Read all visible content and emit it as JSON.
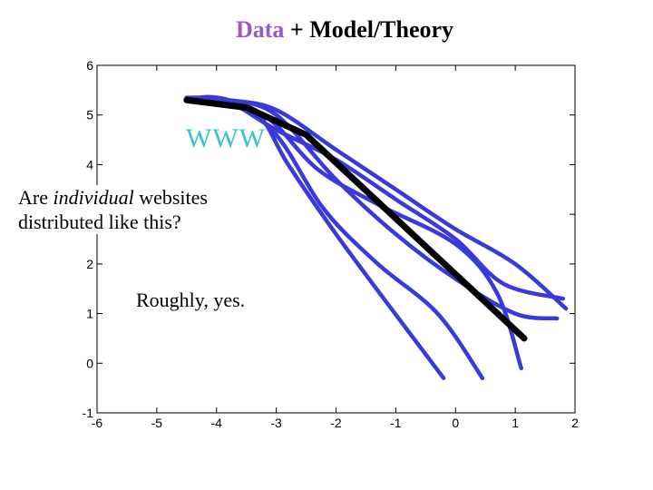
{
  "title": {
    "accent": "Data",
    "rest": " + Model/Theory"
  },
  "colors": {
    "accent": "#9b59c6",
    "data_curves": "#3a3adc",
    "model_line": "#000000",
    "www_label": "#3cc3c3"
  },
  "annotations": {
    "www": "WWW",
    "question_prefix": "Are ",
    "question_italic": "individual",
    "question_suffix": " websites",
    "question_line2": "distributed like this?",
    "answer": "Roughly, yes."
  },
  "chart_data": {
    "type": "line",
    "title": "Data + Model/Theory",
    "xlabel": "",
    "ylabel": "",
    "xlim": [
      -6,
      2
    ],
    "ylim": [
      -1,
      6
    ],
    "xticks": [
      -6,
      -5,
      -4,
      -3,
      -2,
      -1,
      0,
      1,
      2
    ],
    "yticks": [
      -1,
      0,
      1,
      2,
      3,
      4,
      5,
      6
    ],
    "ytick_labels_visible": [
      "-1",
      "0",
      "1",
      "2",
      "4",
      "5",
      "6"
    ],
    "grid": false,
    "series": [
      {
        "role": "data",
        "points": [
          [
            -4.5,
            5.3
          ],
          [
            -4.0,
            5.35
          ],
          [
            -3.3,
            5.0
          ],
          [
            -2.8,
            4.0
          ],
          [
            -2.0,
            2.6
          ],
          [
            -1.2,
            1.3
          ],
          [
            -0.2,
            -0.3
          ]
        ]
      },
      {
        "role": "data",
        "points": [
          [
            -4.5,
            5.3
          ],
          [
            -3.8,
            5.3
          ],
          [
            -3.0,
            4.6
          ],
          [
            -2.2,
            3.1
          ],
          [
            -1.3,
            2.0
          ],
          [
            -0.3,
            1.0
          ],
          [
            0.45,
            -0.3
          ]
        ]
      },
      {
        "role": "data",
        "points": [
          [
            -4.5,
            5.35
          ],
          [
            -3.8,
            5.3
          ],
          [
            -3.1,
            4.9
          ],
          [
            -2.3,
            3.9
          ],
          [
            -1.3,
            3.2
          ],
          [
            0.0,
            2.4
          ],
          [
            0.7,
            1.4
          ],
          [
            1.1,
            -0.1
          ]
        ]
      },
      {
        "role": "data",
        "points": [
          [
            -4.5,
            5.3
          ],
          [
            -3.8,
            5.25
          ],
          [
            -3.0,
            4.7
          ],
          [
            -2.0,
            4.1
          ],
          [
            -1.0,
            3.3
          ],
          [
            0.0,
            2.5
          ],
          [
            0.8,
            1.6
          ],
          [
            1.8,
            1.3
          ]
        ]
      },
      {
        "role": "data",
        "points": [
          [
            -4.5,
            5.3
          ],
          [
            -3.8,
            5.3
          ],
          [
            -3.0,
            5.0
          ],
          [
            -2.0,
            3.7
          ],
          [
            -1.0,
            2.6
          ],
          [
            0.0,
            1.7
          ],
          [
            1.0,
            1.0
          ],
          [
            1.7,
            0.9
          ]
        ]
      },
      {
        "role": "data",
        "points": [
          [
            -4.5,
            5.35
          ],
          [
            -3.8,
            5.3
          ],
          [
            -3.0,
            5.1
          ],
          [
            -2.0,
            4.3
          ],
          [
            -1.0,
            3.5
          ],
          [
            0.0,
            2.7
          ],
          [
            1.0,
            2.0
          ],
          [
            1.85,
            1.1
          ]
        ]
      },
      {
        "role": "model",
        "points": [
          [
            -4.5,
            5.3
          ],
          [
            -3.5,
            5.15
          ],
          [
            -2.5,
            4.6
          ],
          [
            1.15,
            0.5
          ]
        ]
      }
    ]
  }
}
